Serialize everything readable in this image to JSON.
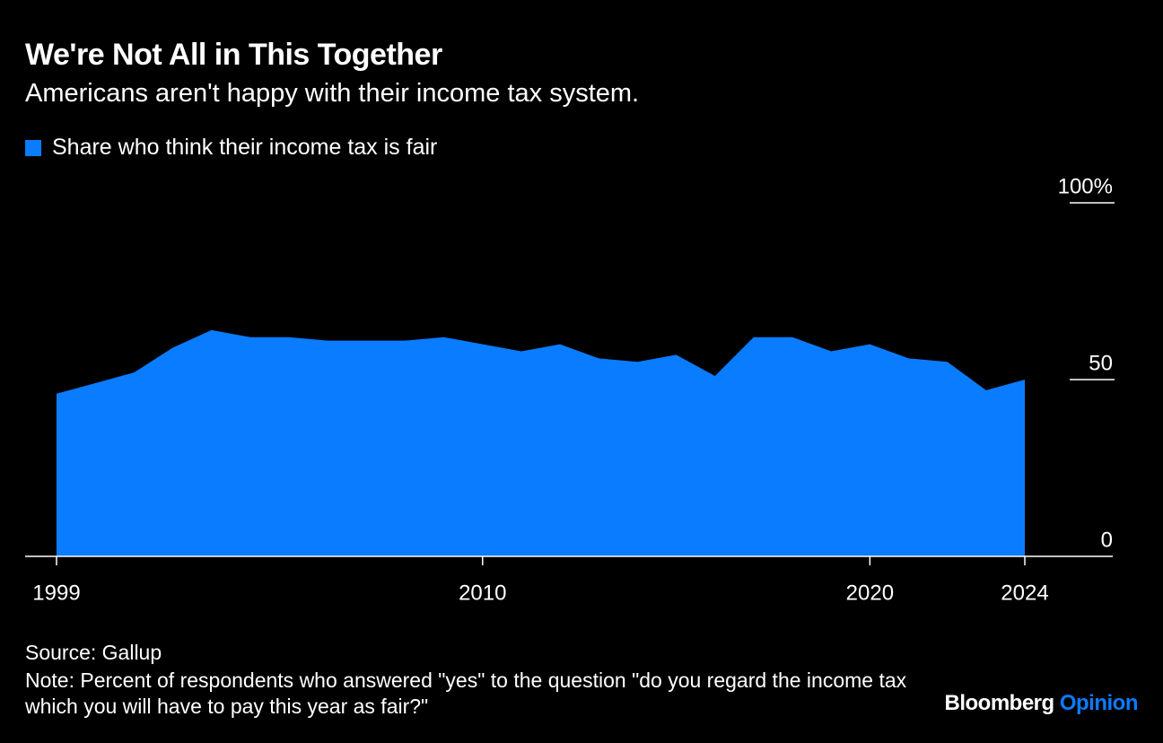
{
  "chart_data": {
    "type": "area",
    "title": "We're Not All in This Together",
    "subtitle": "Americans aren't happy with their income tax system.",
    "x": [
      1999,
      2000,
      2001,
      2002,
      2003,
      2004,
      2005,
      2006,
      2007,
      2008,
      2009,
      2010,
      2011,
      2012,
      2013,
      2014,
      2015,
      2016,
      2017,
      2018,
      2019,
      2020,
      2021,
      2022,
      2023,
      2024
    ],
    "series": [
      {
        "name": "Share who think their income tax is fair",
        "color": "#0a7cff",
        "values": [
          46,
          49,
          52,
          59,
          64,
          62,
          62,
          61,
          61,
          61,
          62,
          60,
          58,
          60,
          56,
          55,
          57,
          51,
          62,
          62,
          58,
          60,
          56,
          55,
          47,
          50
        ]
      }
    ],
    "xlim": [
      1999,
      2024
    ],
    "xticks": [
      1999,
      2010,
      2020,
      2024
    ],
    "ylim": [
      0,
      100
    ],
    "yticks": [
      0,
      50,
      {
        "value": 100,
        "label": "100%"
      }
    ],
    "source": "Source: Gallup",
    "note": "Note: Percent of respondents who answered \"yes\" to the question \"do you regard the income tax which you will have to pay this year as fair?\"",
    "brand": "Bloomberg",
    "brand_product": "Opinion"
  }
}
